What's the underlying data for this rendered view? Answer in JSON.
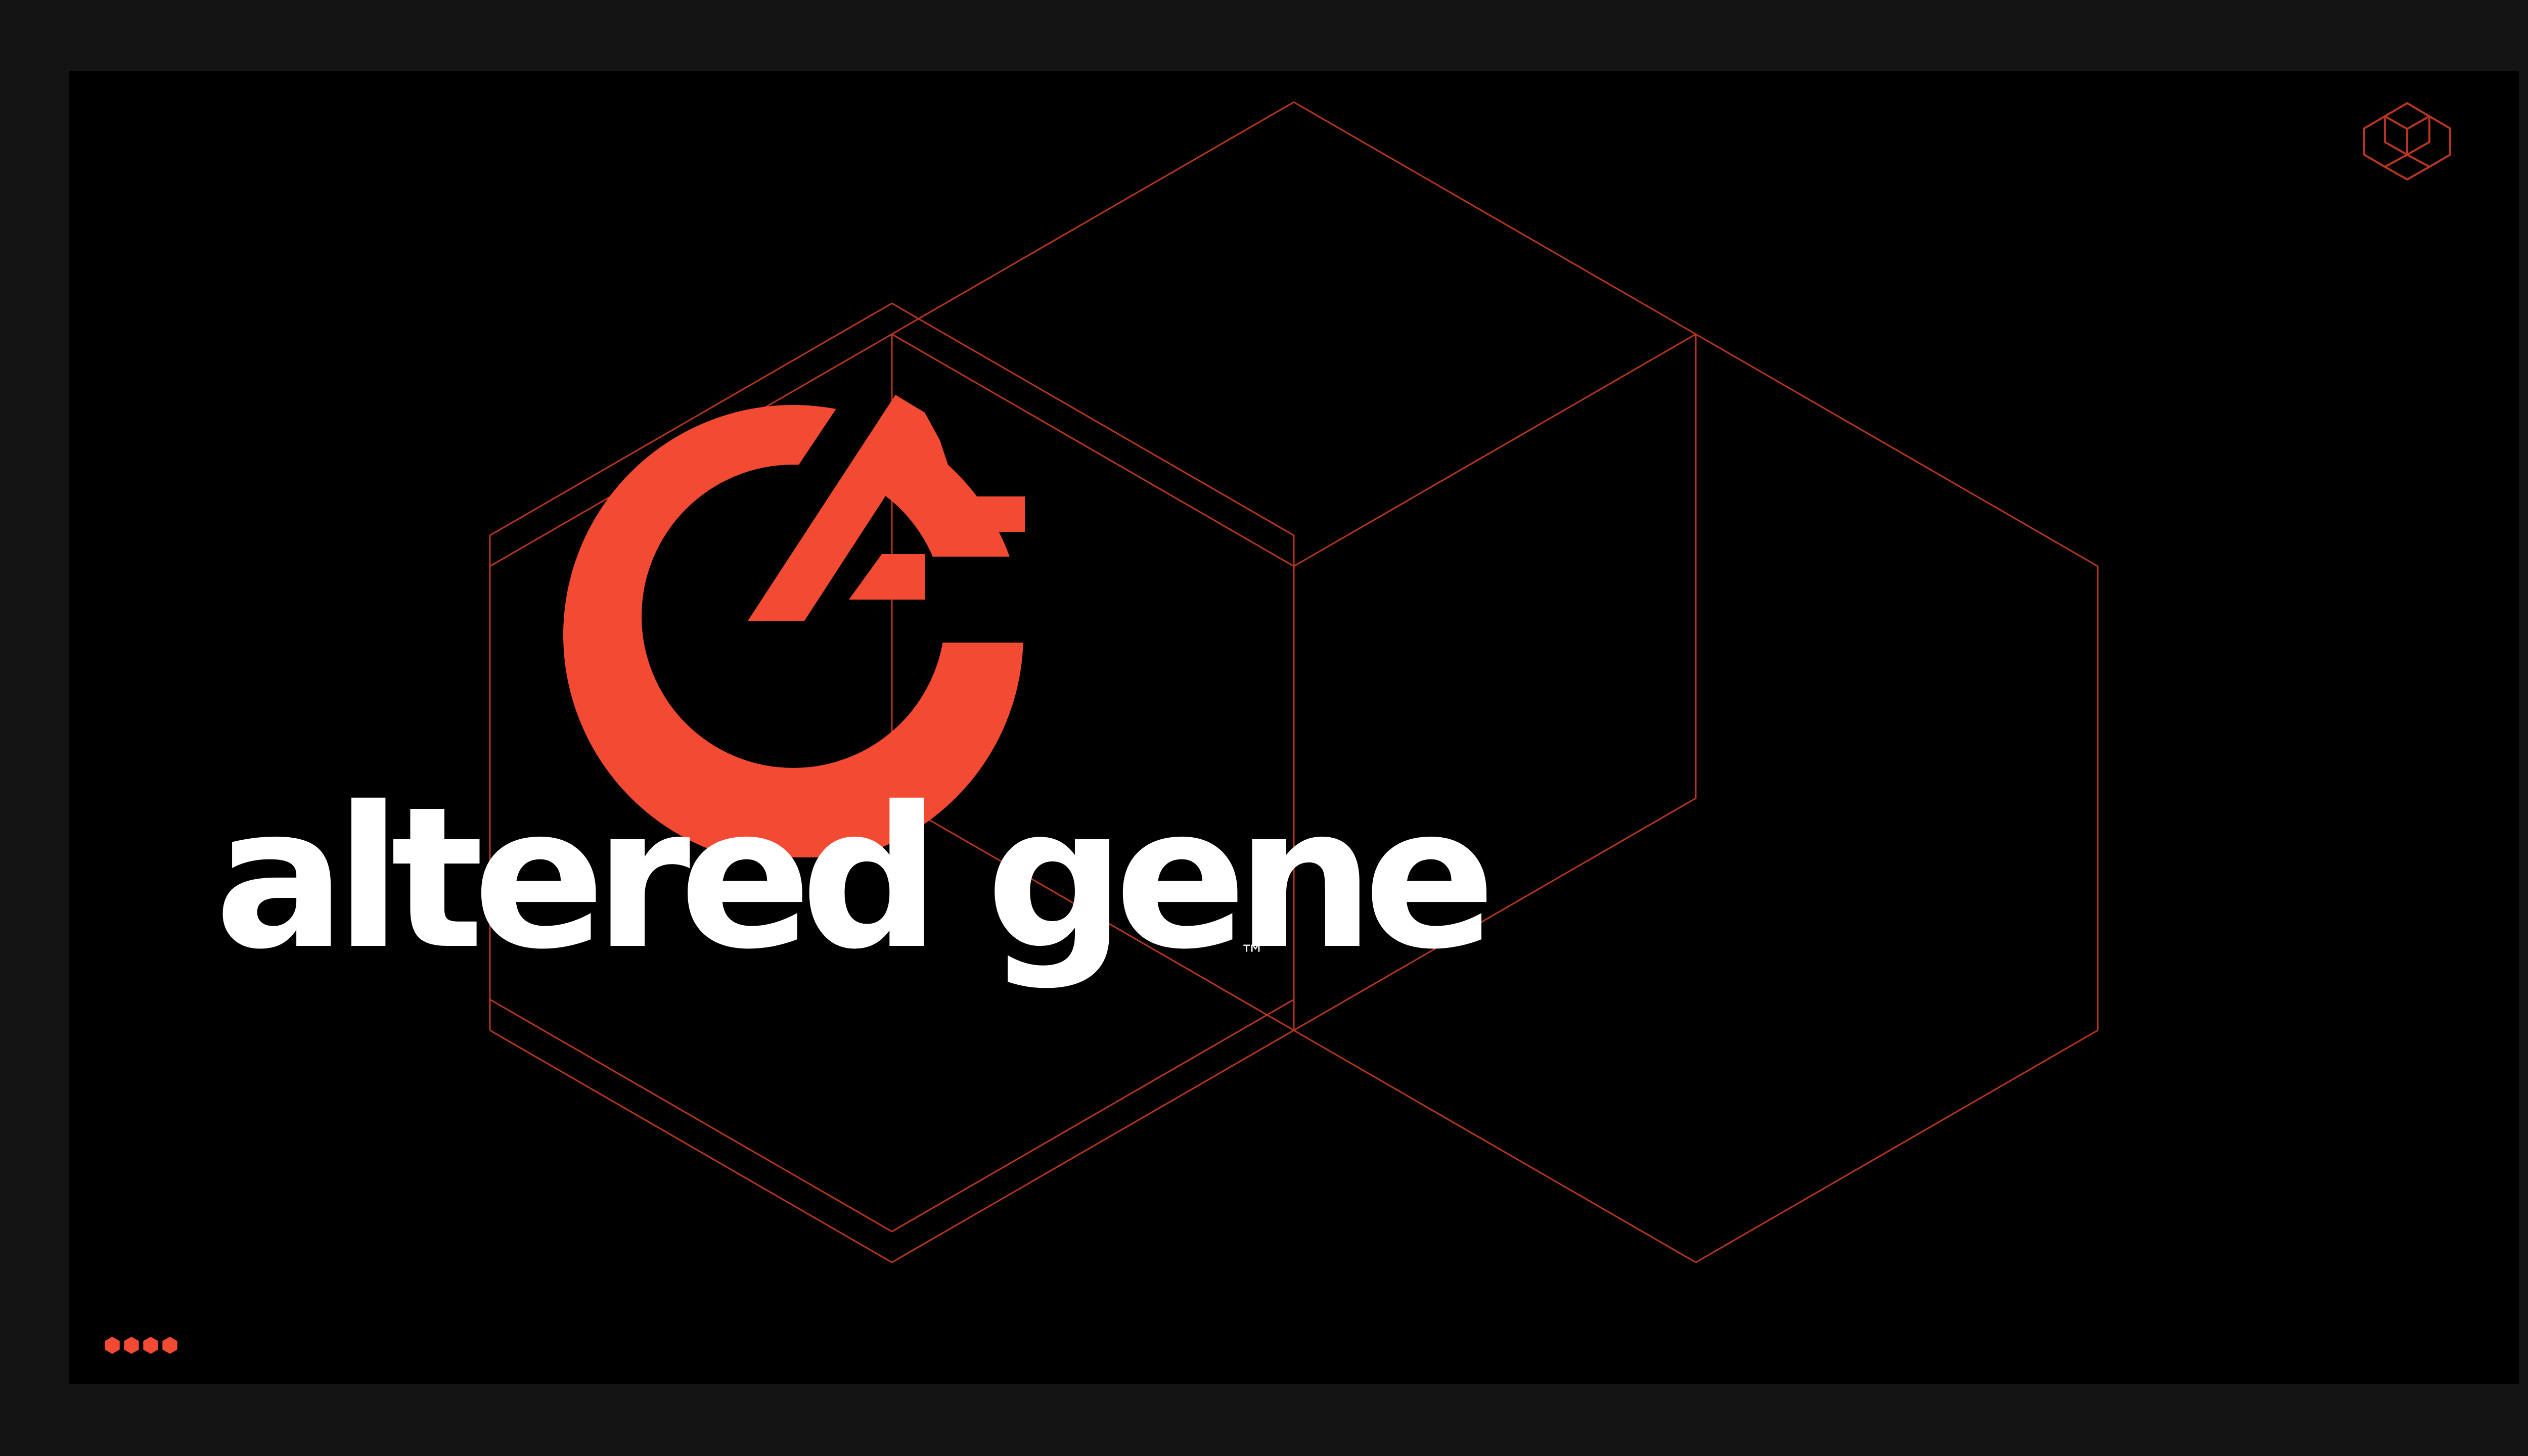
{
  "brand": {
    "wordmark": "altered gene",
    "trademark": "™",
    "monogram_letters": "AG",
    "accent_color": "#F34A33",
    "line_color": "#B8361F",
    "text_color": "#FFFFFF",
    "background_color": "#000000",
    "frame_color": "#141414"
  },
  "decor": {
    "background_art": "hexagonal-cube-outline",
    "corner_icon": "cube-outline-icon",
    "page_indicator_icon": "hexagon-dots-icon",
    "page_indicator_count": 4
  }
}
